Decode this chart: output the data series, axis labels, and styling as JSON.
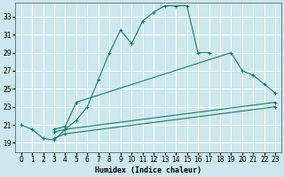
{
  "xlabel": "Humidex (Indice chaleur)",
  "bg_color": "#cce8ec",
  "grid_color": "#ffffff",
  "line_color": "#1a7a6a",
  "xlim": [
    -0.5,
    23.5
  ],
  "ylim": [
    18.0,
    34.5
  ],
  "yticks": [
    19,
    21,
    23,
    25,
    27,
    29,
    31,
    33
  ],
  "xticks": [
    0,
    1,
    2,
    3,
    4,
    5,
    6,
    7,
    8,
    9,
    10,
    11,
    12,
    13,
    14,
    15,
    16,
    17,
    18,
    19,
    20,
    21,
    22,
    23
  ],
  "curve1_x": [
    0,
    1,
    2,
    3,
    4,
    5,
    6,
    7,
    8,
    9,
    10,
    11,
    12,
    13,
    14,
    15,
    16,
    17
  ],
  "curve1_y": [
    21.0,
    20.5,
    19.5,
    19.3,
    20.5,
    21.5,
    23.0,
    26.0,
    29.0,
    31.5,
    30.0,
    32.5,
    33.5,
    34.2,
    34.2,
    34.2,
    29.0,
    29.0
  ],
  "curve2_x": [
    3,
    4,
    5,
    19,
    20,
    21,
    22,
    23
  ],
  "curve2_y": [
    20.5,
    20.8,
    23.5,
    29.0,
    27.0,
    26.5,
    25.5,
    24.5
  ],
  "curve3_x": [
    3,
    4,
    23
  ],
  "curve3_y": [
    20.2,
    20.5,
    23.5
  ],
  "curve4_x": [
    3,
    4,
    23
  ],
  "curve4_y": [
    19.5,
    20.0,
    23.0
  ]
}
